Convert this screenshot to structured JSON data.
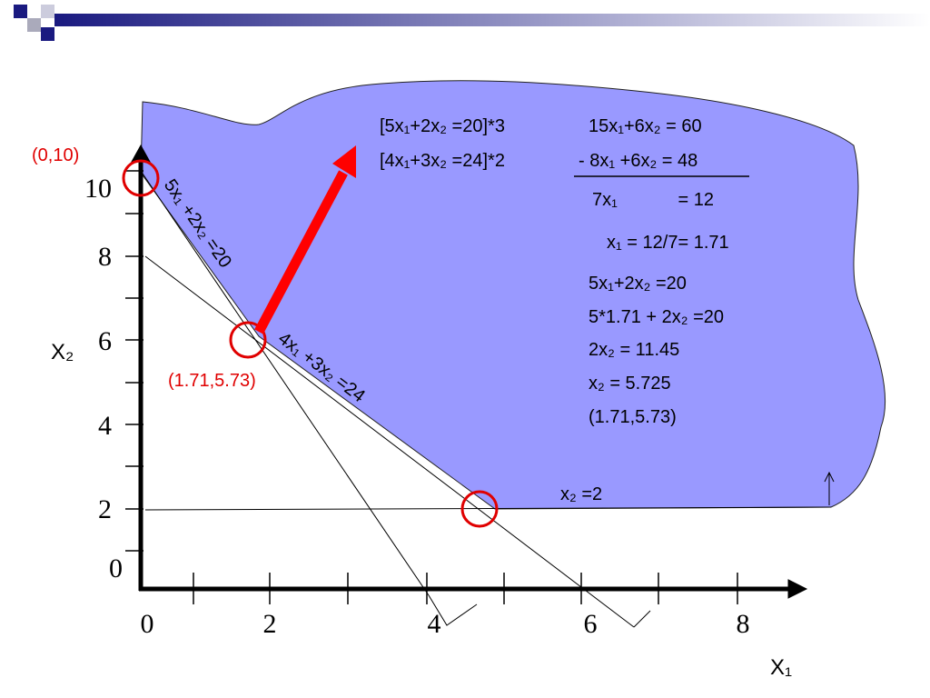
{
  "graph": {
    "y_ticks": [
      "0",
      "2",
      "4",
      "6",
      "8",
      "10"
    ],
    "x_ticks": [
      "0",
      "2",
      "4",
      "6",
      "8"
    ],
    "x_axis_label": "X₁",
    "y_axis_label": "X₂",
    "point_top": "(0,10)",
    "point_mid": "(1.71,5.73)",
    "line_1": "5x₁ +2x₂ =20",
    "line_2": "4x₁ +3x₂ =24",
    "line_3": "x₂ =2"
  },
  "work": {
    "multipliers": [
      "[5x₁+2x₂ =20]*3",
      "[4x₁+3x₂ =24]*2"
    ],
    "subtraction": [
      "15x₁+6x₂ = 60",
      "- 8x₁ +6x₂ = 48",
      "7x₁            = 12"
    ],
    "steps": [
      "x₁ = 12/7= 1.71",
      "5x₁+2x₂ =20",
      "5*1.71 + 2x₂ =20",
      "2x₂ = 11.45",
      "x₂ = 5.725",
      "(1.71,5.73)"
    ]
  }
}
